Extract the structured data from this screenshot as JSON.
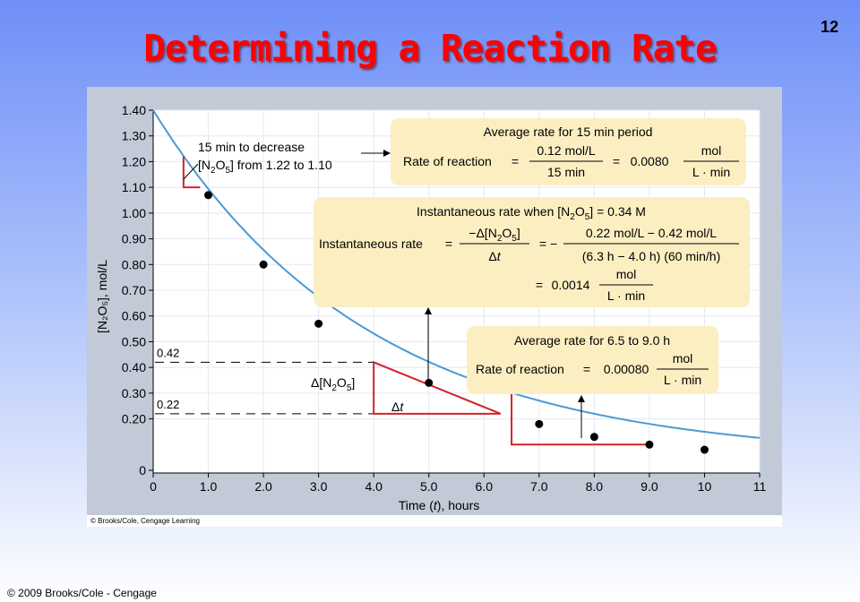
{
  "slide": {
    "title": "Determining a Reaction Rate",
    "number": "12",
    "footer": "© 2009 Brooks/Cole - Cengage",
    "figure_credit": "© Brooks/Cole, Cengage Learning"
  },
  "colors": {
    "title": "#ff0000",
    "curve": "#4a9ad3",
    "callout": "#fbefc2",
    "triangle": "#d2232a"
  },
  "chart_data": {
    "type": "scatter",
    "xlabel_pre": "Time (",
    "xlabel_var": "t",
    "xlabel_post": "), hours",
    "ylabel": "[N₂O₅], mol/L",
    "xlim": [
      0,
      11
    ],
    "ylim": [
      0,
      1.4
    ],
    "x_ticks": [
      "0",
      "1.0",
      "2.0",
      "3.0",
      "4.0",
      "5.0",
      "6.0",
      "7.0",
      "8.0",
      "9.0",
      "10",
      "11"
    ],
    "y_ticks": [
      {
        "v": 0,
        "label": "0"
      },
      {
        "v": 0.2,
        "label": "0.20"
      },
      {
        "v": 0.3,
        "label": "0.30"
      },
      {
        "v": 0.4,
        "label": "0.40"
      },
      {
        "v": 0.5,
        "label": "0.50"
      },
      {
        "v": 0.6,
        "label": "0.60"
      },
      {
        "v": 0.7,
        "label": "0.70"
      },
      {
        "v": 0.8,
        "label": "0.80"
      },
      {
        "v": 0.9,
        "label": "0.90"
      },
      {
        "v": 1.0,
        "label": "1.00"
      },
      {
        "v": 1.1,
        "label": "1.10"
      },
      {
        "v": 1.2,
        "label": "1.20"
      },
      {
        "v": 1.3,
        "label": "1.30"
      },
      {
        "v": 1.4,
        "label": "1.40"
      }
    ],
    "points": [
      {
        "x": 1.0,
        "y": 1.07
      },
      {
        "x": 2.0,
        "y": 0.8
      },
      {
        "x": 3.0,
        "y": 0.57
      },
      {
        "x": 5.0,
        "y": 0.34
      },
      {
        "x": 7.0,
        "y": 0.18
      },
      {
        "x": 8.0,
        "y": 0.13
      },
      {
        "x": 9.0,
        "y": 0.1
      },
      {
        "x": 10.0,
        "y": 0.08
      }
    ],
    "curve": {
      "y0": 1.4,
      "k": 0.256,
      "c": 0.045
    },
    "ref_lines": [
      {
        "y": 0.42,
        "label": "0.42"
      },
      {
        "y": 0.22,
        "label": "0.22"
      }
    ],
    "annotations": {
      "note_line1": "15 min to decrease",
      "note_line2_a": "[N",
      "note_line2_sub": "2",
      "note_line2_b": "O",
      "note_line2_sub2": "5",
      "note_line2_c": "] from 1.22 to 1.10",
      "delta_conc_a": "Δ[N",
      "delta_conc_sub": "2",
      "delta_conc_b": "O",
      "delta_conc_sub2": "5",
      "delta_conc_c": "]",
      "delta_t_a": "Δ",
      "delta_t_b": "t"
    },
    "box1": {
      "title": "Average rate for 15 min period",
      "lhs": "Rate of reaction",
      "eq": "=",
      "num": "0.12 mol/L",
      "den": "15 min",
      "eq2": "=",
      "value": "0.0080",
      "unit_num": "mol",
      "unit_den": "L · min"
    },
    "box2": {
      "title_a": "Instantaneous rate when [N",
      "title_sub": "2",
      "title_b": "O",
      "title_sub2": "5",
      "title_c": "] = 0.34 M",
      "lhs": "Instantaneous rate",
      "eq": "=",
      "frac1_num_a": "−Δ[N",
      "frac1_num_sub": "2",
      "frac1_num_b": "O",
      "frac1_num_sub2": "5",
      "frac1_num_c": "]",
      "frac1_den_a": "Δ",
      "frac1_den_b": "t",
      "eq2": "= −",
      "frac2_num": "0.22 mol/L − 0.42 mol/L",
      "frac2_den": "(6.3 h − 4.0 h) (60 min/h)",
      "eq3": "=",
      "value": "0.0014",
      "unit_num": "mol",
      "unit_den": "L · min"
    },
    "box3": {
      "title": "Average rate for 6.5 to 9.0 h",
      "lhs": "Rate of reaction",
      "eq": "=",
      "value": "0.00080",
      "unit_num": "mol",
      "unit_den": "L · min"
    }
  }
}
